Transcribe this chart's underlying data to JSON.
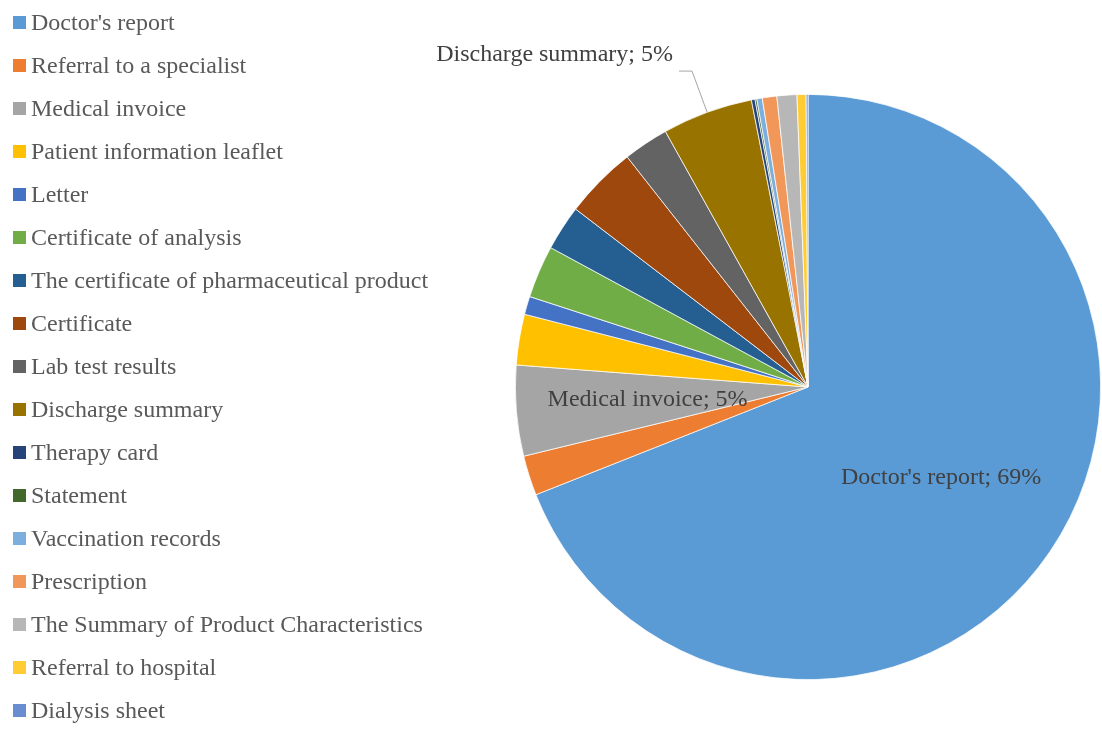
{
  "chart_data": {
    "type": "pie",
    "categories": [
      "Doctor's report",
      "Referral to a specialist",
      "Medical invoice",
      "Patient information leaflet",
      "Letter",
      "Certificate of analysis",
      "The certificate of pharmaceutical product",
      "Certificate",
      "Lab test results",
      "Discharge summary",
      "Therapy card",
      "Statement",
      "Vaccination records",
      "Prescription",
      "The Summary of Product Characteristics",
      "Referral to hospital",
      "Dialysis sheet"
    ],
    "values": [
      69,
      2.2,
      5,
      2.8,
      1.0,
      2.9,
      2.5,
      4.0,
      2.5,
      5,
      0.2,
      0.1,
      0.3,
      0.8,
      1.1,
      0.5,
      0.1
    ],
    "colors": [
      "#5b9bd5",
      "#ed7d31",
      "#a5a5a5",
      "#ffc000",
      "#4472c4",
      "#70ad47",
      "#255e91",
      "#9e480e",
      "#636363",
      "#997300",
      "#264478",
      "#43682b",
      "#7cafdd",
      "#f1975a",
      "#b7b7b7",
      "#ffcd33",
      "#698ed0"
    ],
    "value_labels": [
      "Doctor's report; 69%",
      null,
      "Medical invoice; 5%",
      null,
      null,
      null,
      null,
      null,
      null,
      "Discharge summary; 5%",
      null,
      null,
      null,
      null,
      null,
      null,
      null
    ],
    "legend": "left"
  }
}
